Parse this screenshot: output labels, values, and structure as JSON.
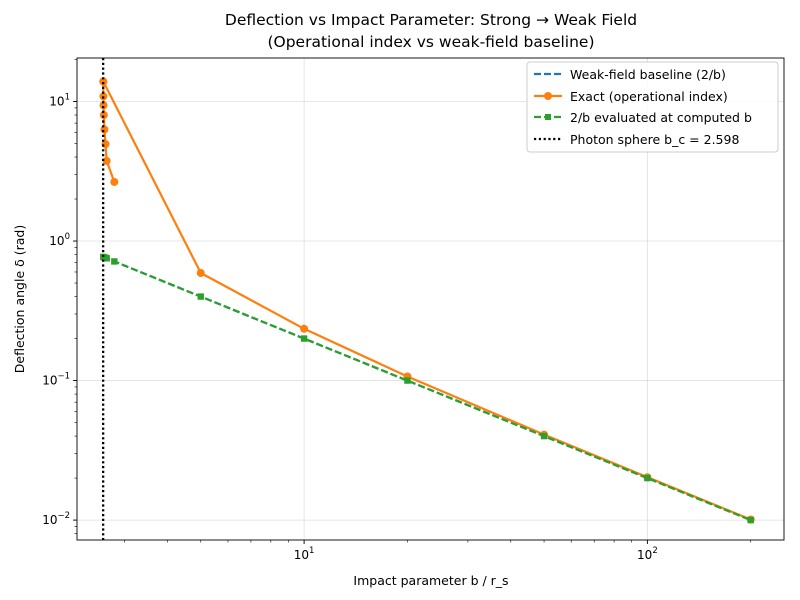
{
  "chart_data": {
    "type": "line",
    "title": "Deflection vs Impact Parameter: Strong → Weak Field",
    "subtitle": "(Operational index vs weak-field baseline)",
    "xlabel": "Impact parameter  b / r_s",
    "ylabel": "Deflection angle  δ (rad)",
    "xscale": "log",
    "yscale": "log",
    "xlim": [
      2.18,
      250
    ],
    "ylim": [
      0.0072,
      20.5
    ],
    "x_major_ticks": [
      10,
      100
    ],
    "x_tick_labels": [
      {
        "base": "10",
        "exp": "1"
      },
      {
        "base": "10",
        "exp": "2"
      }
    ],
    "y_major_ticks": [
      0.01,
      0.1,
      1,
      10
    ],
    "y_tick_labels": [
      {
        "base": "10",
        "exp": "−2"
      },
      {
        "base": "10",
        "exp": "−1"
      },
      {
        "base": "10",
        "exp": "0"
      },
      {
        "base": "10",
        "exp": "1"
      }
    ],
    "grid": true,
    "legend_position": "top-right",
    "series": [
      {
        "name": "Weak-field baseline (2/b)",
        "style": "dashed",
        "marker": "none",
        "color": "#1f77b4",
        "x": [
          2.6,
          2.62,
          2.64,
          2.66,
          2.7,
          2.8,
          5,
          10,
          20,
          50,
          100,
          200
        ],
        "y": [
          0.769,
          0.763,
          0.758,
          0.752,
          0.741,
          0.714,
          0.4,
          0.2,
          0.1,
          0.04,
          0.02,
          0.01
        ]
      },
      {
        "name": "Exact (operational index)",
        "style": "solid",
        "marker": "circle",
        "color": "#ff7f0e",
        "x": [
          2.8,
          2.66,
          2.64,
          2.62,
          2.61,
          2.605,
          2.603,
          2.601,
          2.6,
          2.6,
          5,
          10,
          20,
          50,
          100,
          200
        ],
        "y": [
          2.65,
          3.75,
          4.95,
          6.3,
          8.0,
          9.4,
          10.9,
          13.9,
          13.9,
          13.9,
          0.59,
          0.235,
          0.107,
          0.041,
          0.0203,
          0.0101
        ]
      },
      {
        "name": "2/b evaluated at computed b",
        "style": "dashed",
        "marker": "square",
        "color": "#2ca02c",
        "x": [
          2.6,
          2.62,
          2.64,
          2.66,
          2.8,
          5,
          10,
          20,
          50,
          100,
          200
        ],
        "y": [
          0.769,
          0.763,
          0.758,
          0.752,
          0.714,
          0.4,
          0.2,
          0.1,
          0.04,
          0.02,
          0.01
        ]
      }
    ],
    "vlines": [
      {
        "name": "Photon sphere  b_c = 2.598",
        "x": 2.598,
        "style": "dotted",
        "color": "#000000"
      }
    ]
  }
}
